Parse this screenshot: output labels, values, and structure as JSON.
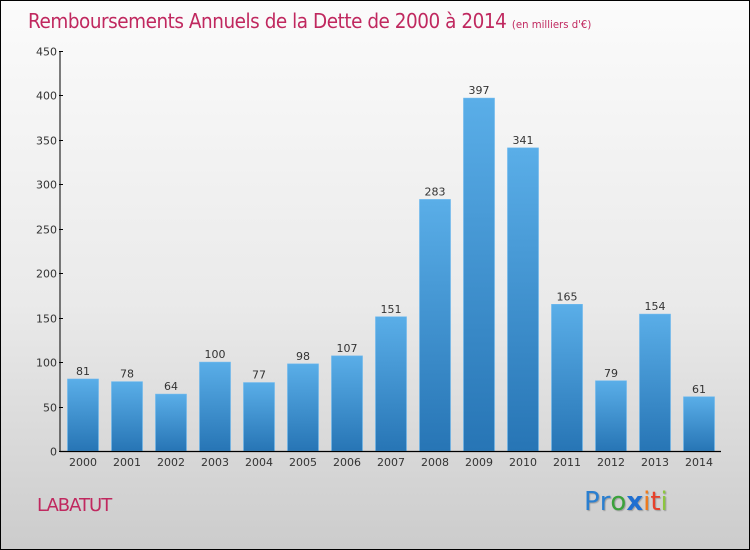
{
  "header": {
    "title": "Remboursements Annuels de la Dette de 2000 à 2014",
    "subtitle": "(en milliers d'€)"
  },
  "footer": {
    "commune": "LABATUT",
    "logo": {
      "letters": [
        {
          "char": "P",
          "color": "#2a7fd0"
        },
        {
          "char": "r",
          "color": "#2a7fd0"
        },
        {
          "char": "o",
          "color": "#3aa23a"
        },
        {
          "char": "x",
          "color": "#1f6fd1"
        },
        {
          "char": "i",
          "color": "#f07a1a"
        },
        {
          "char": "t",
          "color": "#e8402a"
        },
        {
          "char": "i",
          "color": "#8cc63f"
        }
      ]
    }
  },
  "colors": {
    "title": "#c0285f",
    "bar_top": "#5aaee8",
    "bar_bottom": "#2775b5",
    "axis": "#000000"
  },
  "chart_data": {
    "type": "bar",
    "title": "Remboursements Annuels de la Dette de 2000 à 2014",
    "subtitle": "(en milliers d'€)",
    "xlabel": "",
    "ylabel": "",
    "categories": [
      "2000",
      "2001",
      "2002",
      "2003",
      "2004",
      "2005",
      "2006",
      "2007",
      "2008",
      "2009",
      "2010",
      "2011",
      "2012",
      "2013",
      "2014"
    ],
    "values": [
      81,
      78,
      64,
      100,
      77,
      98,
      107,
      151,
      283,
      397,
      341,
      165,
      79,
      154,
      61
    ],
    "ylim": [
      0,
      450
    ],
    "yticks": [
      0,
      50,
      100,
      150,
      200,
      250,
      300,
      350,
      400,
      450
    ],
    "grid": false,
    "legend": "none",
    "data_labels": true
  }
}
